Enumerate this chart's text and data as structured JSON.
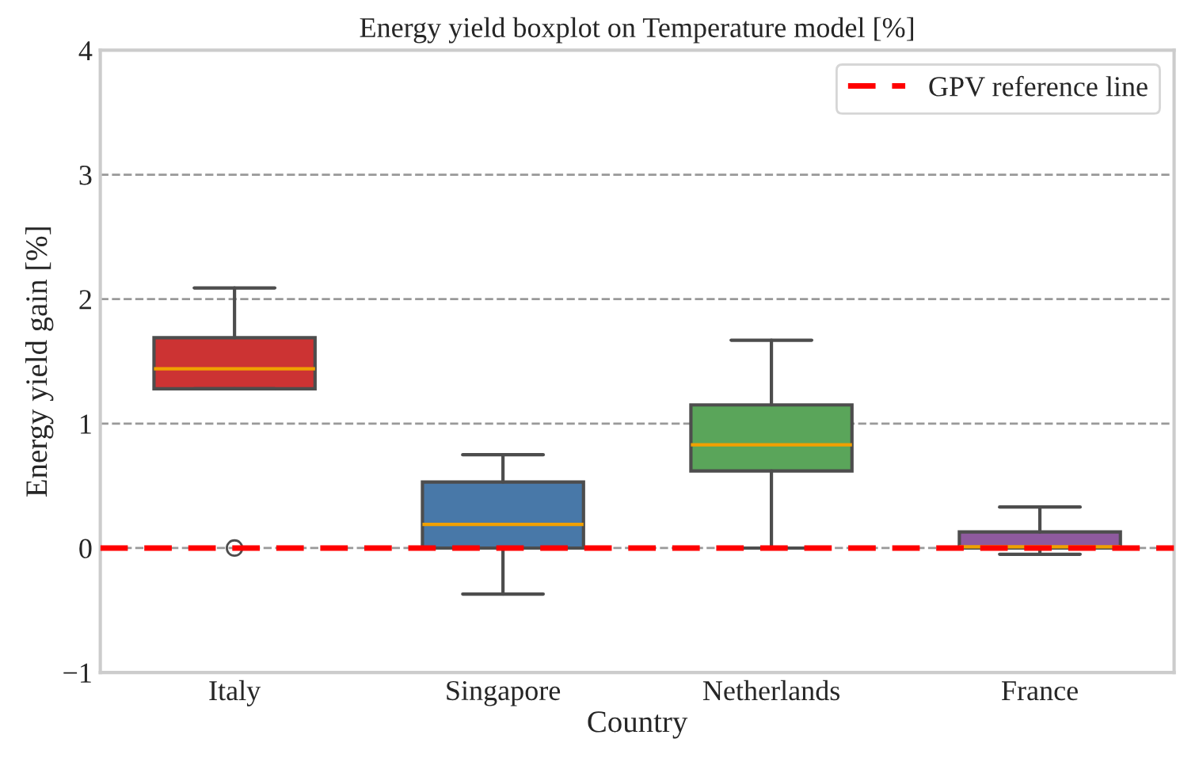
{
  "chart_data": {
    "type": "box",
    "title": "Energy yield boxplot on Temperature model [%]",
    "xlabel": "Country",
    "ylabel": "Energy yield gain [%]",
    "categories": [
      "Italy",
      "Singapore",
      "Netherlands",
      "France"
    ],
    "colors": [
      "#cc3333",
      "#4878a8",
      "#5aa55a",
      "#8e5a9e"
    ],
    "boxes": [
      {
        "low": 1.28,
        "q1": 1.28,
        "median": 1.44,
        "q3": 1.69,
        "high": 2.09,
        "outliers": [
          0
        ]
      },
      {
        "low": -0.37,
        "q1": 0,
        "median": 0.19,
        "q3": 0.53,
        "high": 0.75
      },
      {
        "low": 0,
        "q1": 0.62,
        "median": 0.83,
        "q3": 1.15,
        "high": 1.67
      },
      {
        "low": -0.05,
        "q1": 0,
        "median": 0.01,
        "q3": 0.13,
        "high": 0.33
      }
    ],
    "ylim": [
      -1,
      4
    ],
    "yticks": [
      -1,
      0,
      1,
      2,
      3,
      4
    ],
    "grid": "y",
    "ref_lines": [
      {
        "axis": "y",
        "value": 0,
        "label": "GPV reference line",
        "color": "#ff0000",
        "line_style": "dashed"
      }
    ],
    "legend": "top right"
  }
}
